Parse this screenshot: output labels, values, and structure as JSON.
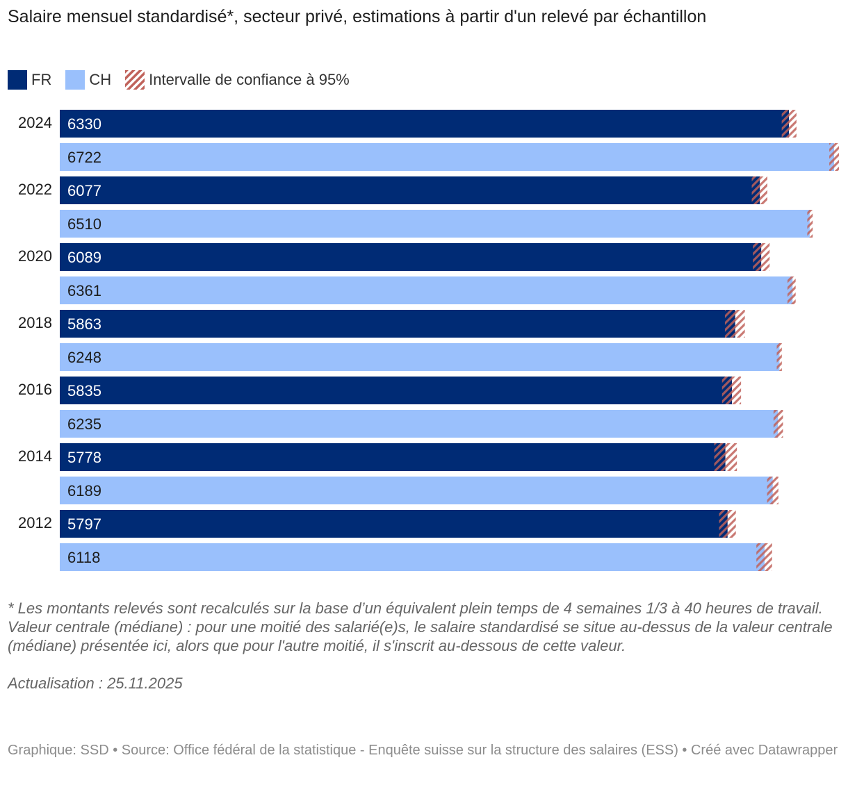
{
  "title": "Salaire mensuel standardisé*, secteur privé, estimations à partir d'un relevé par échantillon",
  "legend": {
    "fr": "FR",
    "ch": "CH",
    "ci": "Intervalle de confiance à 95%"
  },
  "colors": {
    "fr": "#002b75",
    "ch": "#9ac0fc",
    "ci": "#c0625a",
    "label_on_fr": "#ffffff",
    "label_on_ch": "#1d1d1d"
  },
  "chart_data": {
    "type": "bar",
    "orientation": "horizontal",
    "title": "Salaire mensuel standardisé*, secteur privé, estimations à partir d'un relevé par échantillon",
    "categories": [
      "2024",
      "2022",
      "2020",
      "2018",
      "2016",
      "2014",
      "2012"
    ],
    "series": [
      {
        "name": "FR",
        "values": [
          6330,
          6077,
          6089,
          5863,
          5835,
          5778,
          5797
        ],
        "ci_low": [
          6267,
          6007,
          6017,
          5774,
          5749,
          5681,
          5723
        ],
        "ci_high": [
          6395,
          6142,
          6162,
          5947,
          5914,
          5878,
          5869
        ]
      },
      {
        "name": "CH",
        "values": [
          6722,
          6510,
          6361,
          6248,
          6235,
          6189,
          6118
        ],
        "ci_low": [
          6680,
          6489,
          6317,
          6224,
          6196,
          6140,
          6047
        ],
        "ci_high": [
          6764,
          6536,
          6388,
          6268,
          6278,
          6238,
          6183
        ]
      }
    ],
    "value_labels": {
      "FR": [
        "6330",
        "6077",
        "6089",
        "5863",
        "5835",
        "5778",
        "5797"
      ],
      "CH": [
        "6722",
        "6510",
        "6361",
        "6248",
        "6235",
        "6189",
        "6118"
      ]
    },
    "xlim": [
      0,
      6770
    ],
    "legend_position": "top-left",
    "grid": false
  },
  "notes": {
    "line1": "* Les montants relevés sont recalculés sur la base d’un équivalent plein temps de 4 semaines 1/3 à 40 heures de travail.",
    "line2": "Valeur centrale (médiane) : pour une moitié des salarié(e)s, le salaire standardisé se situe au-dessus de la valeur centrale (médiane) présentée ici, alors que pour l'autre moitié, il s'inscrit au-dessous de cette valeur.",
    "update": "Actualisation : 25.11.2025"
  },
  "footer": "Graphique: SSD • Source: Office fédéral de la statistique - Enquête suisse sur la structure des salaires (ESS) • Créé avec Datawrapper"
}
